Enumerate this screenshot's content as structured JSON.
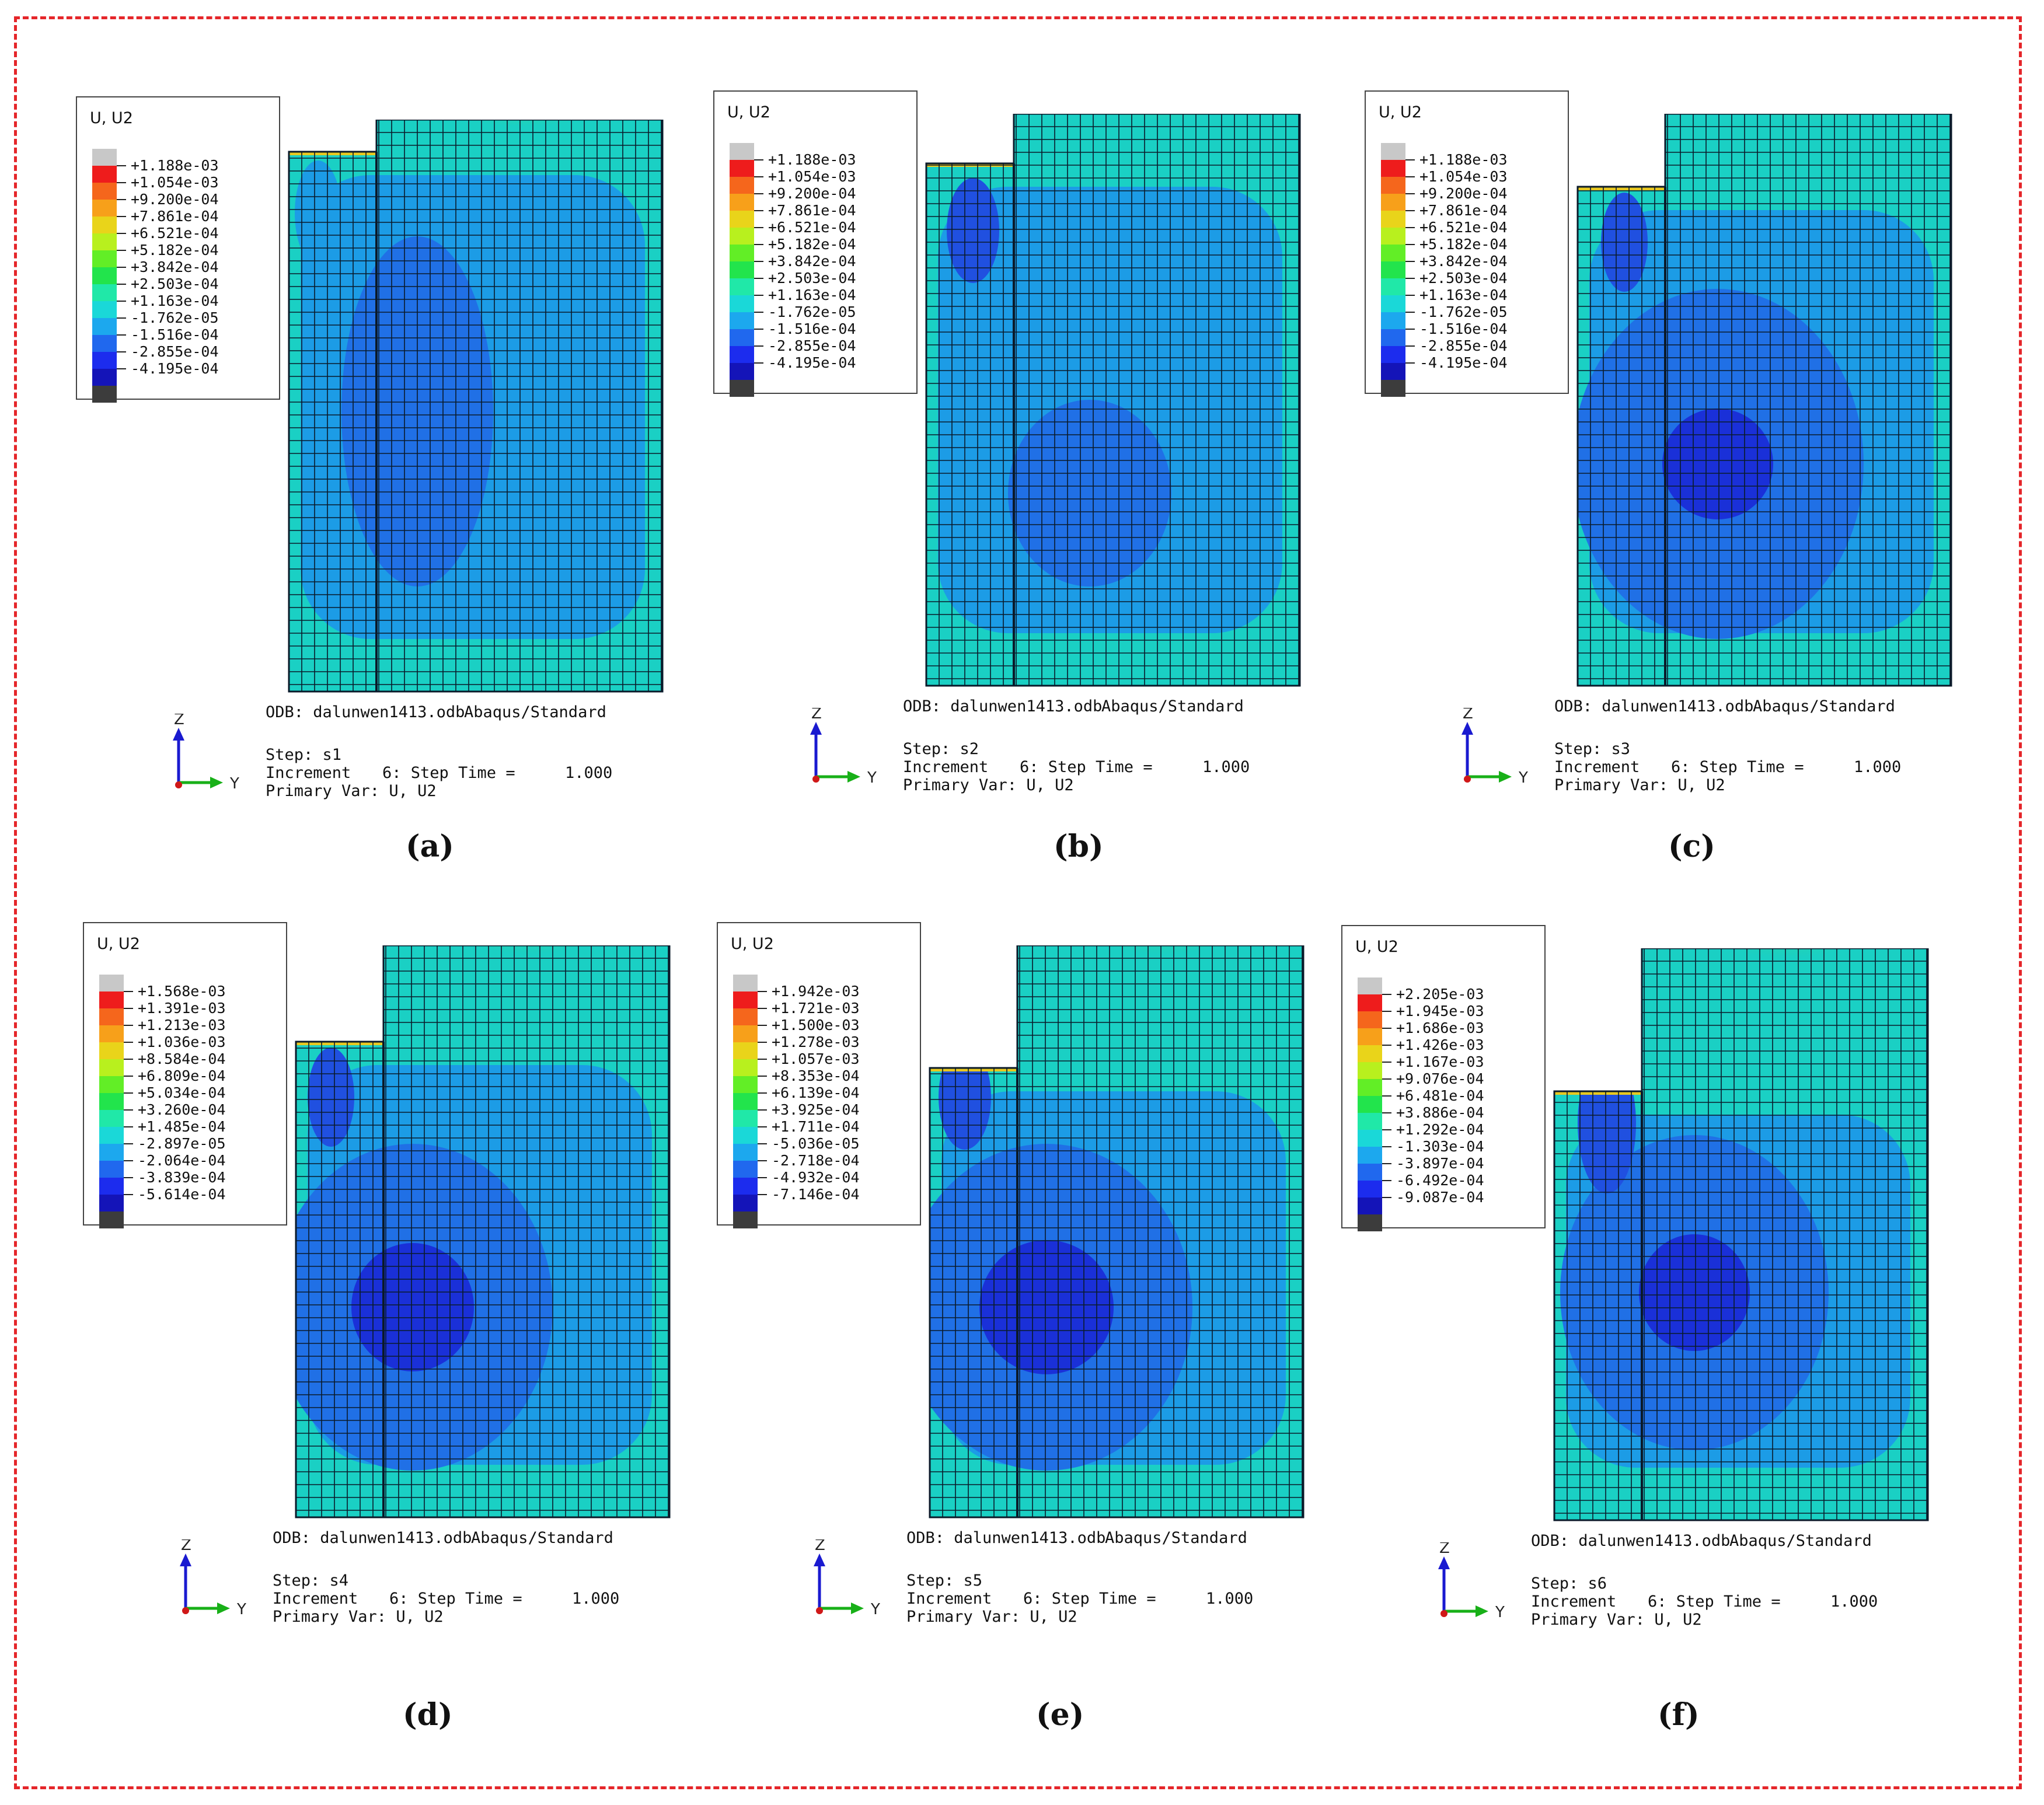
{
  "figure": {
    "border_color": "#e5262a",
    "legend_title": "U, U2",
    "odb_label": "ODB: dalunwen1413.odb",
    "solver_label": "Abaqus/Standard",
    "increment_label": "Increment",
    "increment_value": "6: Step Time =",
    "step_time_value": "1.000",
    "primary_var_label": "Primary Var: U, U2",
    "axis_z": "Z",
    "axis_y": "Y",
    "legend_colors": [
      "#c8c8c8",
      "#ee1c1c",
      "#f5661c",
      "#f7a01a",
      "#e9d41a",
      "#b8f01e",
      "#62ee26",
      "#22e44c",
      "#20e8a8",
      "#1ad8d8",
      "#1ca8ee",
      "#2068ee",
      "#1c2cee",
      "#1414b8",
      "#3c3c3c"
    ]
  },
  "panels": [
    {
      "caption": "(a)",
      "step": "Step: s1",
      "legend_values": [
        "+1.188e-03",
        "+1.054e-03",
        "+9.200e-04",
        "+7.861e-04",
        "+6.521e-04",
        "+5.182e-04",
        "+3.842e-04",
        "+2.503e-04",
        "+1.163e-04",
        "-1.762e-05",
        "-1.516e-04",
        "-2.855e-04",
        "-4.195e-04"
      ]
    },
    {
      "caption": "(b)",
      "step": "Step: s2",
      "legend_values": [
        "+1.188e-03",
        "+1.054e-03",
        "+9.200e-04",
        "+7.861e-04",
        "+6.521e-04",
        "+5.182e-04",
        "+3.842e-04",
        "+2.503e-04",
        "+1.163e-04",
        "-1.762e-05",
        "-1.516e-04",
        "-2.855e-04",
        "-4.195e-04"
      ]
    },
    {
      "caption": "(c)",
      "step": "Step: s3",
      "legend_values": [
        "+1.188e-03",
        "+1.054e-03",
        "+9.200e-04",
        "+7.861e-04",
        "+6.521e-04",
        "+5.182e-04",
        "+3.842e-04",
        "+2.503e-04",
        "+1.163e-04",
        "-1.762e-05",
        "-1.516e-04",
        "-2.855e-04",
        "-4.195e-04"
      ]
    },
    {
      "caption": "(d)",
      "step": "Step: s4",
      "legend_values": [
        "+1.568e-03",
        "+1.391e-03",
        "+1.213e-03",
        "+1.036e-03",
        "+8.584e-04",
        "+6.809e-04",
        "+5.034e-04",
        "+3.260e-04",
        "+1.485e-04",
        "-2.897e-05",
        "-2.064e-04",
        "-3.839e-04",
        "-5.614e-04"
      ]
    },
    {
      "caption": "(e)",
      "step": "Step: s5",
      "legend_values": [
        "+1.942e-03",
        "+1.721e-03",
        "+1.500e-03",
        "+1.278e-03",
        "+1.057e-03",
        "+8.353e-04",
        "+6.139e-04",
        "+3.925e-04",
        "+1.711e-04",
        "-5.036e-05",
        "-2.718e-04",
        "-4.932e-04",
        "-7.146e-04"
      ]
    },
    {
      "caption": "(f)",
      "step": "Step: s6",
      "legend_values": [
        "+2.205e-03",
        "+1.945e-03",
        "+1.686e-03",
        "+1.426e-03",
        "+1.167e-03",
        "+9.076e-04",
        "+6.481e-04",
        "+3.886e-04",
        "+1.292e-04",
        "-1.303e-04",
        "-3.897e-04",
        "-6.492e-04",
        "-9.087e-04"
      ]
    }
  ]
}
